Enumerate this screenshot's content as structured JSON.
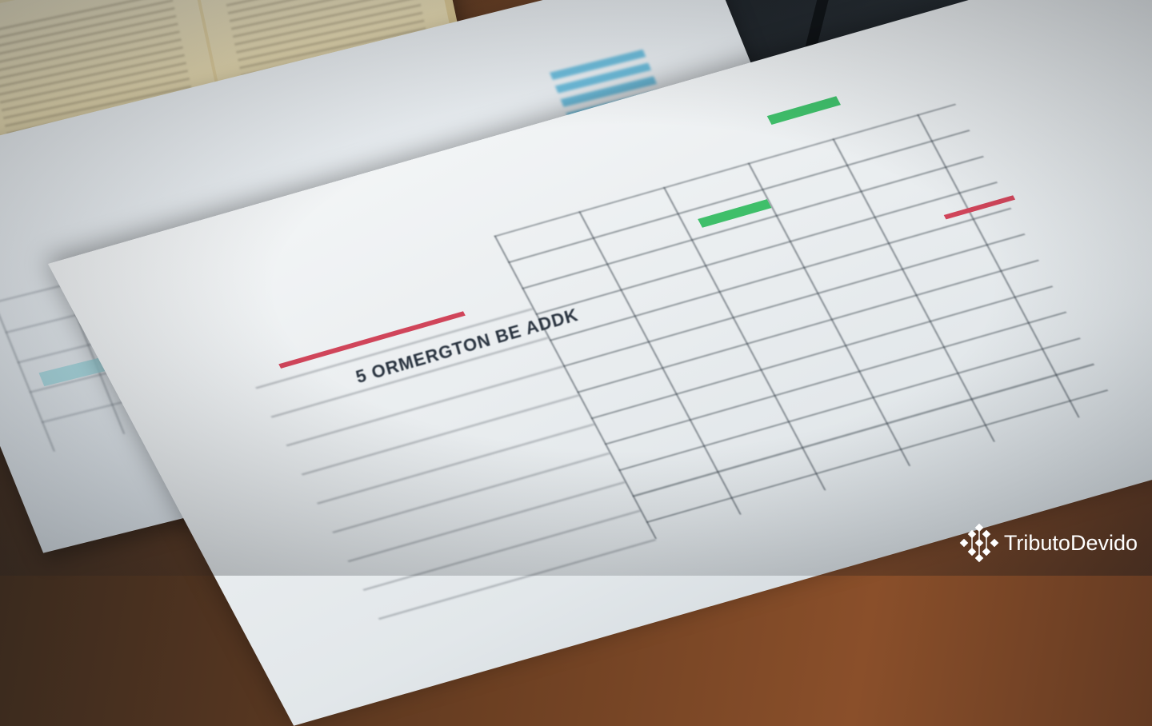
{
  "scene": "photo",
  "document": {
    "heading": "5 ORMERGTON BE ADDK"
  },
  "watermark": {
    "brand": "TributoDevido",
    "icon": "diamond-network-icon",
    "color": "#ffffff"
  },
  "colors": {
    "accent_red": "#d0455a",
    "accent_green": "#3fbf6a",
    "accent_blue": "#4fb2d8"
  }
}
